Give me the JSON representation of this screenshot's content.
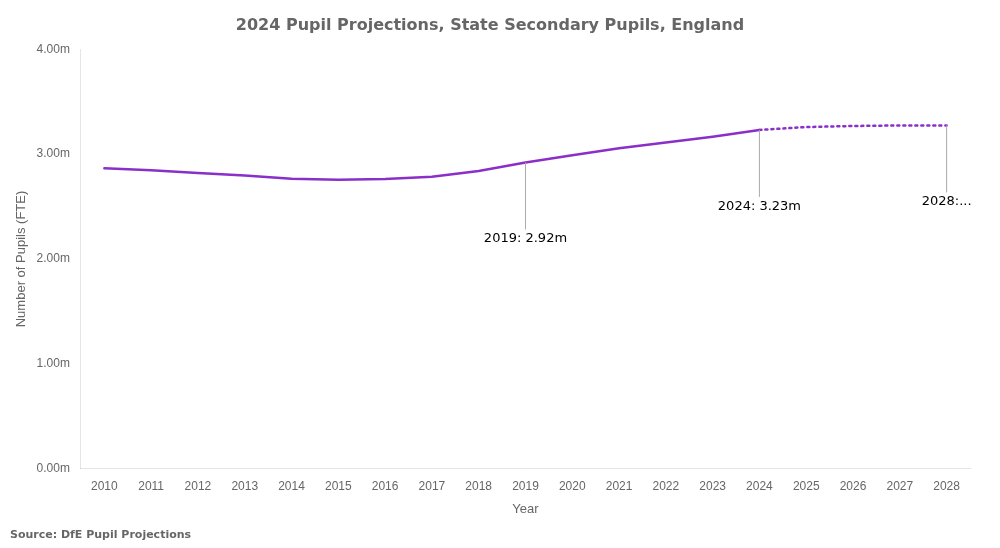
{
  "chart_data": {
    "type": "line",
    "title": "2024 Pupil Projections, State Secondary Pupils, England",
    "x_label": "Year",
    "y_label": "Number of Pupils (FTE)",
    "source": "Source: DfE Pupil Projections",
    "series": [
      {
        "x": [
          2010,
          2011,
          2012,
          2013,
          2014,
          2015,
          2016,
          2017,
          2018,
          2019,
          2020,
          2021,
          2022,
          2023,
          2024
        ],
        "values": [
          2.865,
          2.845,
          2.82,
          2.795,
          2.765,
          2.755,
          2.763,
          2.785,
          2.838,
          2.92,
          2.99,
          3.055,
          3.11,
          3.165,
          3.23
        ],
        "color": "#8B2FC9",
        "line_style": "solid"
      },
      {
        "x": [
          2024,
          2025,
          2026,
          2027,
          2028
        ],
        "values": [
          3.23,
          3.258,
          3.268,
          3.273,
          3.273
        ],
        "color": "#8B2FC9",
        "line_style": "dotted"
      }
    ],
    "xlim": [
      2009.5,
      2028.5
    ],
    "xticks": [
      2010,
      2011,
      2012,
      2013,
      2014,
      2015,
      2016,
      2017,
      2018,
      2019,
      2020,
      2021,
      2022,
      2023,
      2024,
      2025,
      2026,
      2027,
      2028
    ],
    "ylim": [
      0.0,
      4.0
    ],
    "yticks": [
      {
        "value": 0.0,
        "label": "0.00m"
      },
      {
        "value": 1.0,
        "label": "1.00m"
      },
      {
        "value": 2.0,
        "label": "2.00m"
      },
      {
        "value": 3.0,
        "label": "3.00m"
      },
      {
        "value": 4.0,
        "label": "4.00m"
      }
    ],
    "annotations": [
      {
        "text": "2019: 2.92m",
        "x": 2019,
        "y": 2.92
      },
      {
        "text": "2024: 3.23m",
        "x": 2024,
        "y": 3.23
      },
      {
        "text": "2028:...",
        "x": 2028,
        "y": 3.273
      }
    ],
    "grid": false
  }
}
